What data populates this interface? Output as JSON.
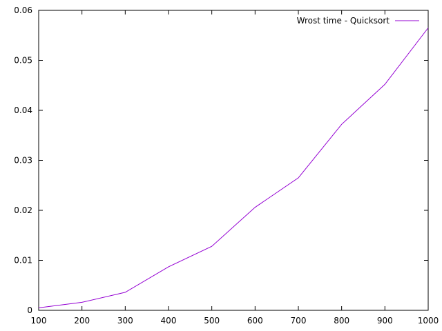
{
  "chart_data": {
    "type": "line",
    "title": "",
    "xlabel": "",
    "ylabel": "",
    "xlim": [
      100,
      1000
    ],
    "ylim": [
      0,
      0.06
    ],
    "x_ticks": [
      100,
      200,
      300,
      400,
      500,
      600,
      700,
      800,
      900,
      1000
    ],
    "x_tick_labels": [
      "100",
      "200",
      "300",
      "400",
      "500",
      "600",
      "700",
      "800",
      "900",
      "1000"
    ],
    "y_ticks": [
      0,
      0.01,
      0.02,
      0.03,
      0.04,
      0.05,
      0.06
    ],
    "y_tick_labels": [
      "0",
      "0.01",
      "0.02",
      "0.03",
      "0.04",
      "0.05",
      "0.06"
    ],
    "grid": false,
    "legend_position": "top-right",
    "series": [
      {
        "name": "Wrost time - Quicksort",
        "color": "#9400d3",
        "x": [
          100,
          200,
          300,
          400,
          500,
          600,
          700,
          800,
          900,
          1000
        ],
        "y": [
          0.0005,
          0.0016,
          0.0036,
          0.0087,
          0.0128,
          0.0206,
          0.0265,
          0.0372,
          0.0452,
          0.0565
        ]
      }
    ]
  }
}
